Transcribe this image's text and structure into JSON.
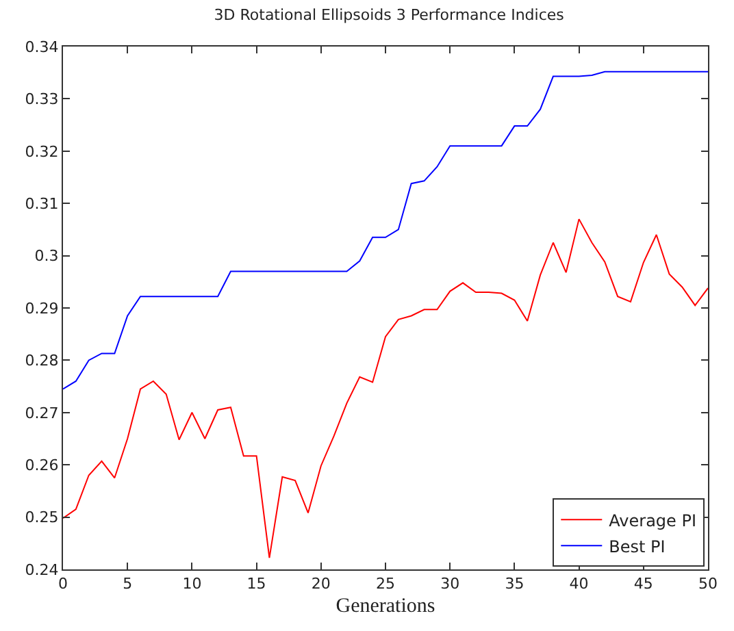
{
  "chart_data": {
    "type": "line",
    "title": "3D Rotational Ellipsoids 3 Performance Indices",
    "xlabel": "Generations",
    "x": [
      0,
      1,
      2,
      3,
      4,
      5,
      6,
      7,
      8,
      9,
      10,
      11,
      12,
      13,
      14,
      15,
      16,
      17,
      18,
      19,
      20,
      21,
      22,
      23,
      24,
      25,
      26,
      27,
      28,
      29,
      30,
      31,
      32,
      33,
      34,
      35,
      36,
      37,
      38,
      39,
      40,
      41,
      42,
      43,
      44,
      45,
      46,
      47,
      48,
      49,
      50
    ],
    "series": [
      {
        "name": "Average PI",
        "color": "#ff0000",
        "values": [
          0.2498,
          0.2515,
          0.258,
          0.2607,
          0.2575,
          0.265,
          0.2745,
          0.276,
          0.2735,
          0.2648,
          0.27,
          0.265,
          0.2705,
          0.271,
          0.2617,
          0.2617,
          0.2422,
          0.2577,
          0.257,
          0.2508,
          0.2598,
          0.2655,
          0.2718,
          0.2768,
          0.2758,
          0.2845,
          0.2878,
          0.2885,
          0.2897,
          0.2897,
          0.2932,
          0.2948,
          0.293,
          0.293,
          0.2928,
          0.2915,
          0.2875,
          0.2963,
          0.3025,
          0.2968,
          0.307,
          0.3025,
          0.2988,
          0.2922,
          0.2912,
          0.2987,
          0.304,
          0.2965,
          0.294,
          0.2905,
          0.2938
        ]
      },
      {
        "name": "Best PI",
        "color": "#0000ff",
        "values": [
          0.2745,
          0.276,
          0.28,
          0.2813,
          0.2813,
          0.2885,
          0.2922,
          0.2922,
          0.2922,
          0.2922,
          0.2922,
          0.2922,
          0.2922,
          0.297,
          0.297,
          0.297,
          0.297,
          0.297,
          0.297,
          0.297,
          0.297,
          0.297,
          0.297,
          0.299,
          0.3035,
          0.3035,
          0.305,
          0.3138,
          0.3143,
          0.317,
          0.321,
          0.321,
          0.321,
          0.321,
          0.321,
          0.3248,
          0.3248,
          0.328,
          0.3343,
          0.3343,
          0.3343,
          0.3345,
          0.3352,
          0.3352,
          0.3352,
          0.3352,
          0.3352,
          0.3352,
          0.3352,
          0.3352,
          0.3352
        ]
      }
    ],
    "xlim": [
      0,
      50
    ],
    "xticks": [
      0,
      5,
      10,
      15,
      20,
      25,
      30,
      35,
      40,
      45,
      50
    ],
    "ylim": [
      0.24,
      0.34
    ],
    "yticks": [
      0.24,
      0.25,
      0.26,
      0.27,
      0.28,
      0.29,
      0.3,
      0.31,
      0.32,
      0.33,
      0.34
    ],
    "legend": "bottom right",
    "marker": "none",
    "line_style": "solid"
  }
}
